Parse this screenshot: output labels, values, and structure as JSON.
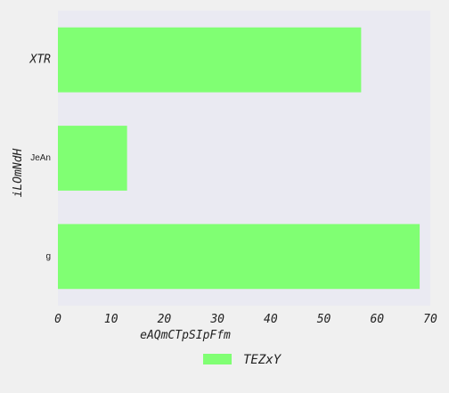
{
  "chart_data": {
    "type": "bar",
    "orientation": "horizontal",
    "categories": [
      "XTR",
      "JeAn",
      "g"
    ],
    "category_styles": [
      "large",
      "small",
      "small"
    ],
    "series": [
      {
        "name": "TEZxY",
        "values": [
          57,
          13,
          68
        ],
        "color": "#80ff73"
      }
    ],
    "title": "",
    "xlabel": "eAQmCTpSIpFfm",
    "ylabel": "iLOmNdH",
    "xlim": [
      0,
      70
    ],
    "xticks": [
      0,
      10,
      20,
      30,
      40,
      50,
      60,
      70
    ],
    "grid": false,
    "legend_position": "bottom-center",
    "plot_background": "#eaeaf2",
    "page_background": "#f0f0f0"
  }
}
